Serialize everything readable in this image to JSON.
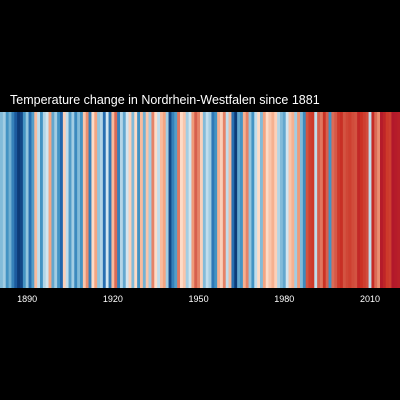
{
  "chart_data": {
    "type": "heatmap",
    "title": "Temperature change in Nordrhein-Westfalen since 1881",
    "x_ticks": [
      "1890",
      "1920",
      "1950",
      "1980",
      "2010"
    ],
    "x_tick_values": [
      1890,
      1920,
      1950,
      1980,
      2010
    ],
    "x": [
      1881,
      1882,
      1883,
      1884,
      1885,
      1886,
      1887,
      1888,
      1889,
      1890,
      1891,
      1892,
      1893,
      1894,
      1895,
      1896,
      1897,
      1898,
      1899,
      1900,
      1901,
      1902,
      1903,
      1904,
      1905,
      1906,
      1907,
      1908,
      1909,
      1910,
      1911,
      1912,
      1913,
      1914,
      1915,
      1916,
      1917,
      1918,
      1919,
      1920,
      1921,
      1922,
      1923,
      1924,
      1925,
      1926,
      1927,
      1928,
      1929,
      1930,
      1931,
      1932,
      1933,
      1934,
      1935,
      1936,
      1937,
      1938,
      1939,
      1940,
      1941,
      1942,
      1943,
      1944,
      1945,
      1946,
      1947,
      1948,
      1949,
      1950,
      1951,
      1952,
      1953,
      1954,
      1955,
      1956,
      1957,
      1958,
      1959,
      1960,
      1961,
      1962,
      1963,
      1964,
      1965,
      1966,
      1967,
      1968,
      1969,
      1970,
      1971,
      1972,
      1973,
      1974,
      1975,
      1976,
      1977,
      1978,
      1979,
      1980,
      1981,
      1982,
      1983,
      1984,
      1985,
      1986,
      1987,
      1988,
      1989,
      1990,
      1991,
      1992,
      1993,
      1994,
      1995,
      1996,
      1997,
      1998,
      1999,
      2000,
      2001,
      2002,
      2003,
      2004,
      2005,
      2006,
      2007,
      2008,
      2009,
      2010,
      2011,
      2012,
      2013,
      2014,
      2015,
      2016,
      2017,
      2018,
      2019,
      2020
    ],
    "values": [
      -0.3,
      -0.2,
      -0.5,
      -0.35,
      -0.6,
      -0.8,
      -0.95,
      -0.9,
      -0.5,
      -0.25,
      -0.7,
      -0.45,
      0.2,
      -0.1,
      -0.5,
      -0.15,
      -0.05,
      0.3,
      -0.4,
      -0.2,
      -0.5,
      -0.75,
      0.1,
      -0.1,
      -0.45,
      -0.2,
      -0.55,
      -0.3,
      -0.5,
      0.15,
      0.4,
      -0.6,
      0.05,
      0.3,
      -0.25,
      -0.15,
      -0.7,
      -0.05,
      -0.65,
      0.2,
      0.55,
      -0.6,
      -0.15,
      -0.4,
      -0.05,
      0.1,
      -0.3,
      0.05,
      -0.5,
      0.2,
      -0.35,
      0.15,
      -0.2,
      0.45,
      0.05,
      -0.1,
      0.2,
      0.3,
      -0.2,
      -0.9,
      -0.6,
      -0.45,
      0.5,
      0.05,
      0.15,
      -0.2,
      -0.05,
      0.35,
      0.6,
      0.45,
      0.1,
      -0.3,
      -0.1,
      -0.2,
      -0.65,
      -0.5,
      0.25,
      0.1,
      0.45,
      -0.1,
      0.2,
      -0.7,
      -0.95,
      -0.4,
      -0.5,
      0.25,
      0.45,
      -0.25,
      -0.5,
      -0.1,
      0.05,
      -0.3,
      0.3,
      0.05,
      0.15,
      0.25,
      0.1,
      -0.15,
      -0.3,
      -0.4,
      -0.05,
      0.15,
      0.25,
      -0.2,
      0.35,
      -0.3,
      -0.55,
      0.7,
      0.85,
      0.9,
      -0.1,
      0.6,
      0.5,
      0.95,
      0.6,
      -0.5,
      0.55,
      0.65,
      0.9,
      1.0,
      0.7,
      0.8,
      0.85,
      0.75,
      0.7,
      1.1,
      0.95,
      0.85,
      0.75,
      -0.1,
      1.05,
      0.55,
      0.4,
      1.3,
      1.15,
      0.9,
      0.85,
      1.35,
      1.3,
      1.25
    ],
    "colors": {
      "background": "#000000",
      "text": "#ffffff"
    },
    "grid": false,
    "legend": "none"
  }
}
